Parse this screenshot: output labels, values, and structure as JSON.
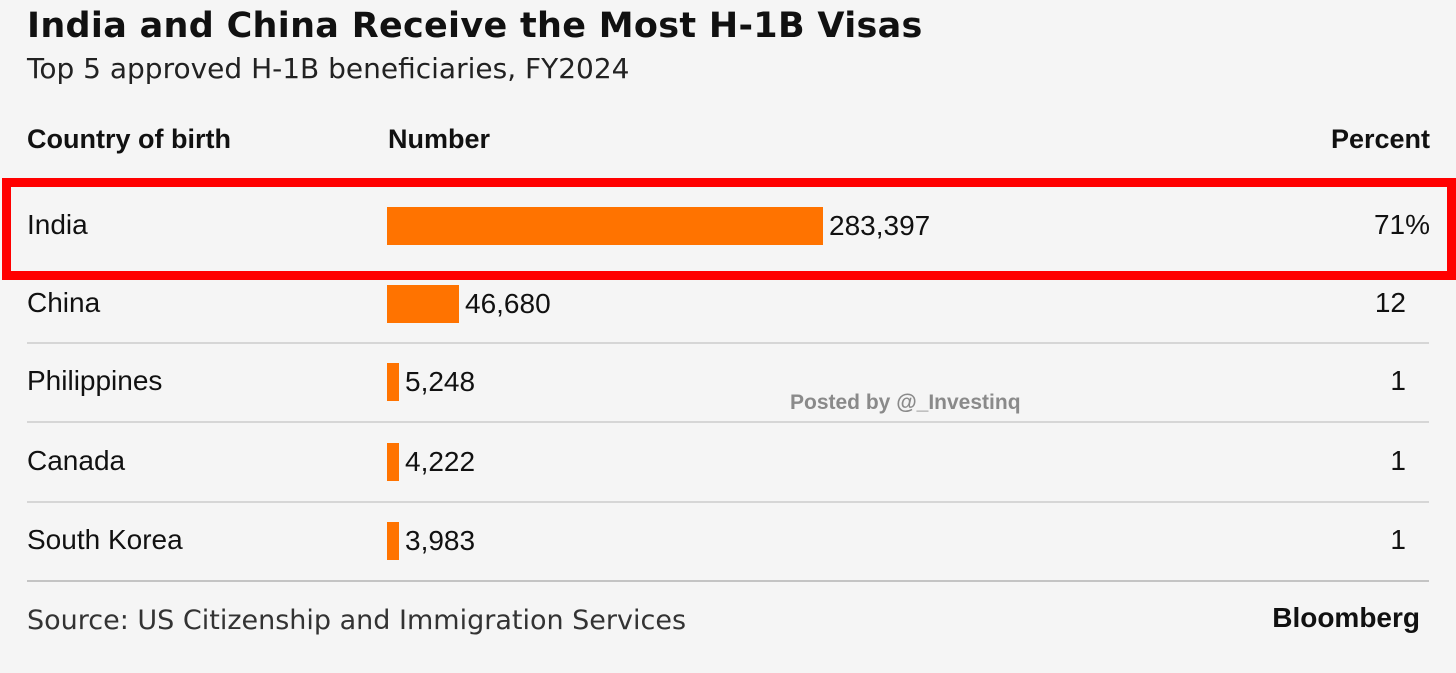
{
  "chart_data": {
    "type": "bar",
    "title": "India and China Receive the Most H-1B Visas",
    "subtitle": "Top 5 approved H-1B beneficiaries, FY2024",
    "columns": {
      "country": "Country of birth",
      "number": "Number",
      "percent": "Percent"
    },
    "categories": [
      "India",
      "China",
      "Philippines",
      "Canada",
      "South Korea"
    ],
    "values": [
      283397,
      46680,
      5248,
      4222,
      3983
    ],
    "value_labels": [
      "283,397",
      "46,680",
      "5,248",
      "4,222",
      "3,983"
    ],
    "percent_labels": [
      "71%",
      "12",
      "1",
      "1",
      "1"
    ],
    "highlighted_category": "India",
    "bar_color": "#ff7300",
    "highlight_color": "#ff0000",
    "source": "Source: US Citizenship and Immigration Services",
    "brand": "Bloomberg"
  },
  "watermark": "Posted by @_Investinq"
}
